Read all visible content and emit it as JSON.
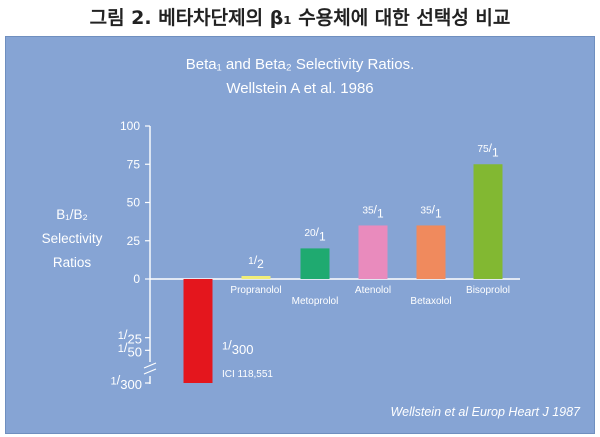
{
  "caption": "그림 2. 베타차단제의 β₁ 수용체에 대한 선택성 비교",
  "colors": {
    "panel_bg": "#86a4d4",
    "text": "#ffffff",
    "axis": "#ffffff"
  },
  "chart_data": {
    "type": "bar",
    "title_line1": "Beta₁ and Beta₂ Selectivity Ratios.",
    "title_line2": "Wellstein A et al. 1986",
    "ylabel_lines": [
      "B₁/B₂",
      "Selectivity",
      "Ratios"
    ],
    "y_ticks_positive": [
      "100",
      "75",
      "50",
      "25",
      "0"
    ],
    "y_ticks_negative": [
      {
        "num": "1",
        "den": "25"
      },
      {
        "num": "1",
        "den": "50"
      },
      {
        "num": "1",
        "den": "300"
      }
    ],
    "ylim": [
      -300,
      100
    ],
    "scale_note": "below zero the axis is broken; fractional ratios (1/x) are plotted downward",
    "bars": [
      {
        "name": "ICI 118,551",
        "value": -300,
        "ratio_num": "1",
        "ratio_den": "300",
        "color": "#e4161d"
      },
      {
        "name": "Propranolol",
        "value": 0.5,
        "ratio_num": "1",
        "ratio_den": "2",
        "color": "#f1ee78"
      },
      {
        "name": "Metoprolol",
        "value": 20,
        "ratio_num": "20",
        "ratio_den": "1",
        "color": "#1faa70"
      },
      {
        "name": "Atenolol",
        "value": 35,
        "ratio_num": "35",
        "ratio_den": "1",
        "color": "#e98bbd"
      },
      {
        "name": "Betaxolol",
        "value": 35,
        "ratio_num": "35",
        "ratio_den": "1",
        "color": "#f08a5d"
      },
      {
        "name": "Bisoprolol",
        "value": 75,
        "ratio_num": "75",
        "ratio_den": "1",
        "color": "#82b832"
      }
    ],
    "source": "Wellstein et al Europ Heart J 1987"
  }
}
